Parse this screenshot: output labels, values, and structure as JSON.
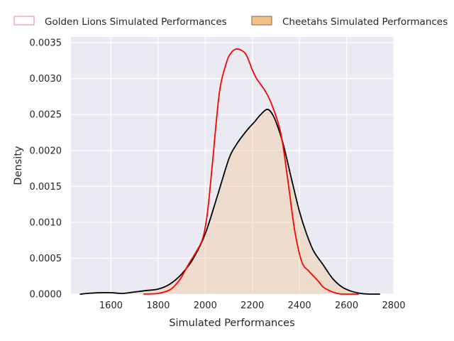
{
  "chart_data": {
    "type": "area",
    "title": "",
    "xlabel": "Simulated Performances",
    "ylabel": "Density",
    "xlim": [
      1430,
      2800
    ],
    "ylim": [
      0,
      0.00358
    ],
    "xticks": [
      1600,
      1800,
      2000,
      2200,
      2400,
      2600,
      2800
    ],
    "xtick_labels": [
      "1600",
      "1800",
      "2000",
      "2200",
      "2400",
      "2600",
      "2800"
    ],
    "yticks": [
      0,
      0.0005,
      0.001,
      0.0015,
      0.002,
      0.0025,
      0.003,
      0.0035
    ],
    "ytick_labels": [
      "0.0000",
      "0.0005",
      "0.0010",
      "0.0015",
      "0.0020",
      "0.0025",
      "0.0030",
      "0.0035"
    ],
    "grid": true,
    "legend_position": "top",
    "series": [
      {
        "name": "Golden Lions Simulated Performances",
        "style": "line",
        "color": "#ff0000",
        "legend_fill": "#ffffff",
        "legend_edge": "#f08080",
        "x": [
          1740,
          1800,
          1850,
          1880,
          1900,
          1930,
          1960,
          1990,
          2010,
          2030,
          2060,
          2090,
          2110,
          2130,
          2150,
          2170,
          2185,
          2200,
          2220,
          2250,
          2280,
          2320,
          2350,
          2380,
          2410,
          2440,
          2460,
          2480,
          2500,
          2520,
          2540,
          2560,
          2580,
          2610,
          2650
        ],
        "y": [
          0.0,
          1e-05,
          6e-05,
          0.00015,
          0.00024,
          0.00042,
          0.00058,
          0.00078,
          0.00115,
          0.0018,
          0.0028,
          0.00322,
          0.00336,
          0.00341,
          0.0034,
          0.00335,
          0.00325,
          0.00312,
          0.00299,
          0.00285,
          0.00266,
          0.00225,
          0.0016,
          0.00088,
          0.00045,
          0.00032,
          0.00025,
          0.00018,
          0.0001,
          6e-05,
          3e-05,
          1e-05,
          0.0,
          0.0,
          0.0
        ]
      },
      {
        "name": "Cheetahs Simulated Performances",
        "style": "filled-line",
        "color": "#000000",
        "fill": "#f4c08a",
        "fill_opacity": 0.35,
        "legend_fill": "#f4c08a",
        "legend_edge": "#8a6040",
        "x": [
          1470,
          1500,
          1550,
          1600,
          1650,
          1700,
          1750,
          1800,
          1850,
          1900,
          1950,
          2000,
          2050,
          2100,
          2130,
          2160,
          2190,
          2210,
          2230,
          2260,
          2280,
          2300,
          2330,
          2370,
          2400,
          2430,
          2460,
          2500,
          2540,
          2580,
          2620,
          2660,
          2700,
          2740
        ],
        "y": [
          0.0,
          1e-05,
          2e-05,
          2e-05,
          1e-05,
          3e-05,
          5e-05,
          7e-05,
          0.00014,
          0.00028,
          0.0005,
          0.00084,
          0.00135,
          0.00188,
          0.00207,
          0.00221,
          0.00233,
          0.0024,
          0.00248,
          0.00257,
          0.00253,
          0.0024,
          0.0021,
          0.00155,
          0.00115,
          0.00084,
          0.0006,
          0.00041,
          0.00022,
          0.0001,
          4e-05,
          1e-05,
          0.0,
          0.0
        ]
      }
    ]
  }
}
